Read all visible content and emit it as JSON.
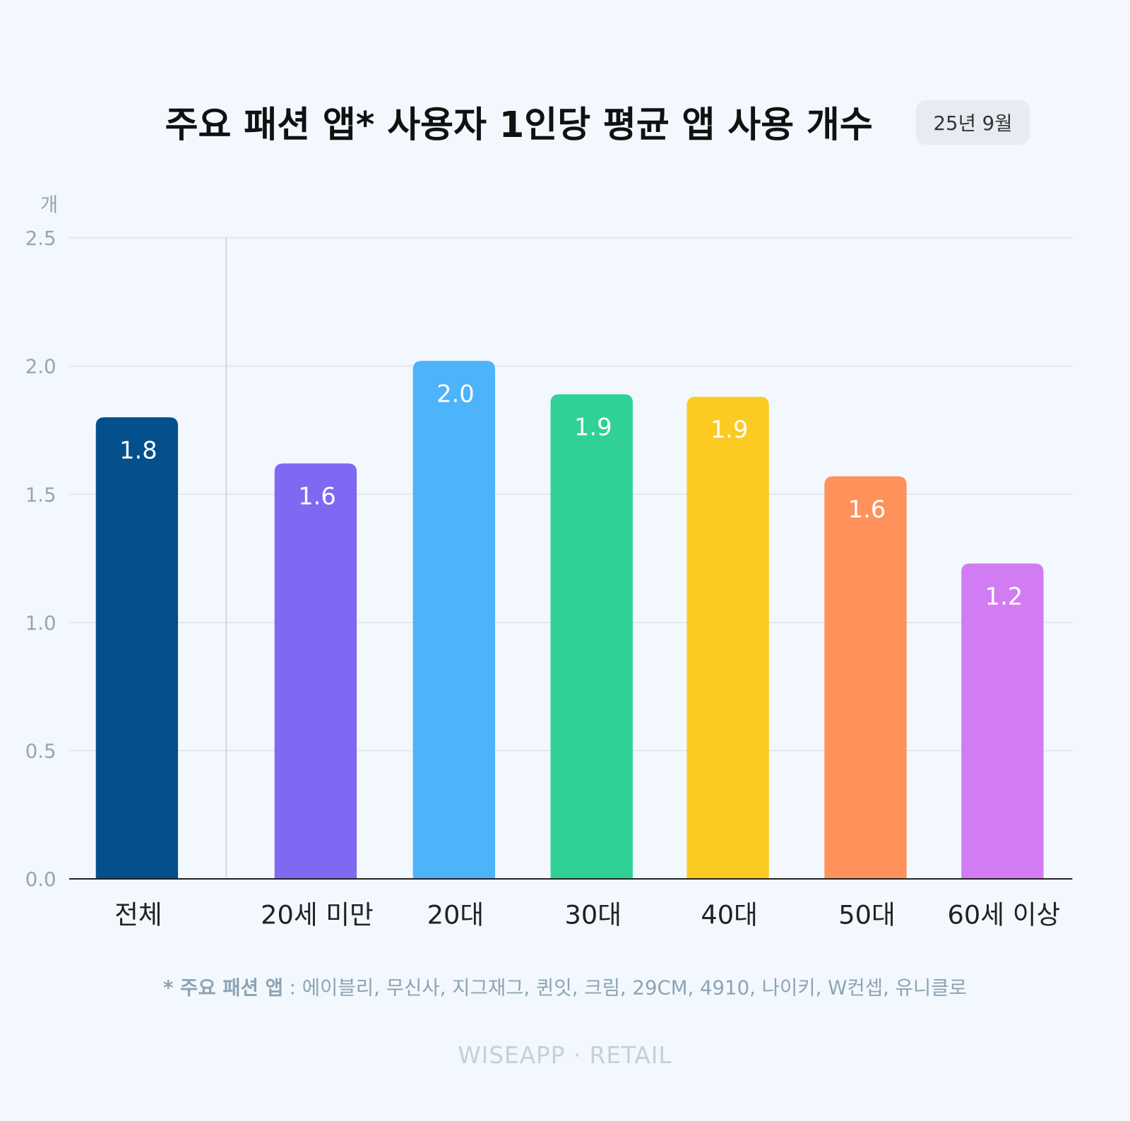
{
  "colors": {
    "background": "#f2f8fd",
    "grid": "#dde3e8",
    "axis": "#222222"
  },
  "watermark": "WISEAPP · RETAIL",
  "chart_data": {
    "type": "bar",
    "title": "주요 패션 앱* 사용자 1인당 평균 앱 사용 개수",
    "period_badge": "25년 9월",
    "ylabel": "개",
    "ylim": [
      0,
      2.5
    ],
    "yticks": [
      "0.0",
      "0.5",
      "1.0",
      "1.5",
      "2.0",
      "2.5"
    ],
    "grid": true,
    "categories": [
      "전체",
      "20세 미만",
      "20대",
      "30대",
      "40대",
      "50대",
      "60세 이상"
    ],
    "values": [
      1.8,
      1.62,
      2.02,
      1.89,
      1.88,
      1.57,
      1.23
    ],
    "value_labels": [
      "1.8",
      "1.6",
      "2.0",
      "1.9",
      "1.9",
      "1.6",
      "1.2"
    ],
    "bar_colors": [
      "#03508c",
      "#7f69f2",
      "#4db3fb",
      "#2fd197",
      "#fbcb21",
      "#ff915b",
      "#d27cf3"
    ],
    "footnote": {
      "label": "* 주요 패션 앱",
      "text": " : 에이블리, 무신사, 지그재그, 퀸잇, 크림, 29CM, 4910, 나이키, W컨셉, 유니클로"
    },
    "brand": "WISEAPP · RETAIL"
  }
}
